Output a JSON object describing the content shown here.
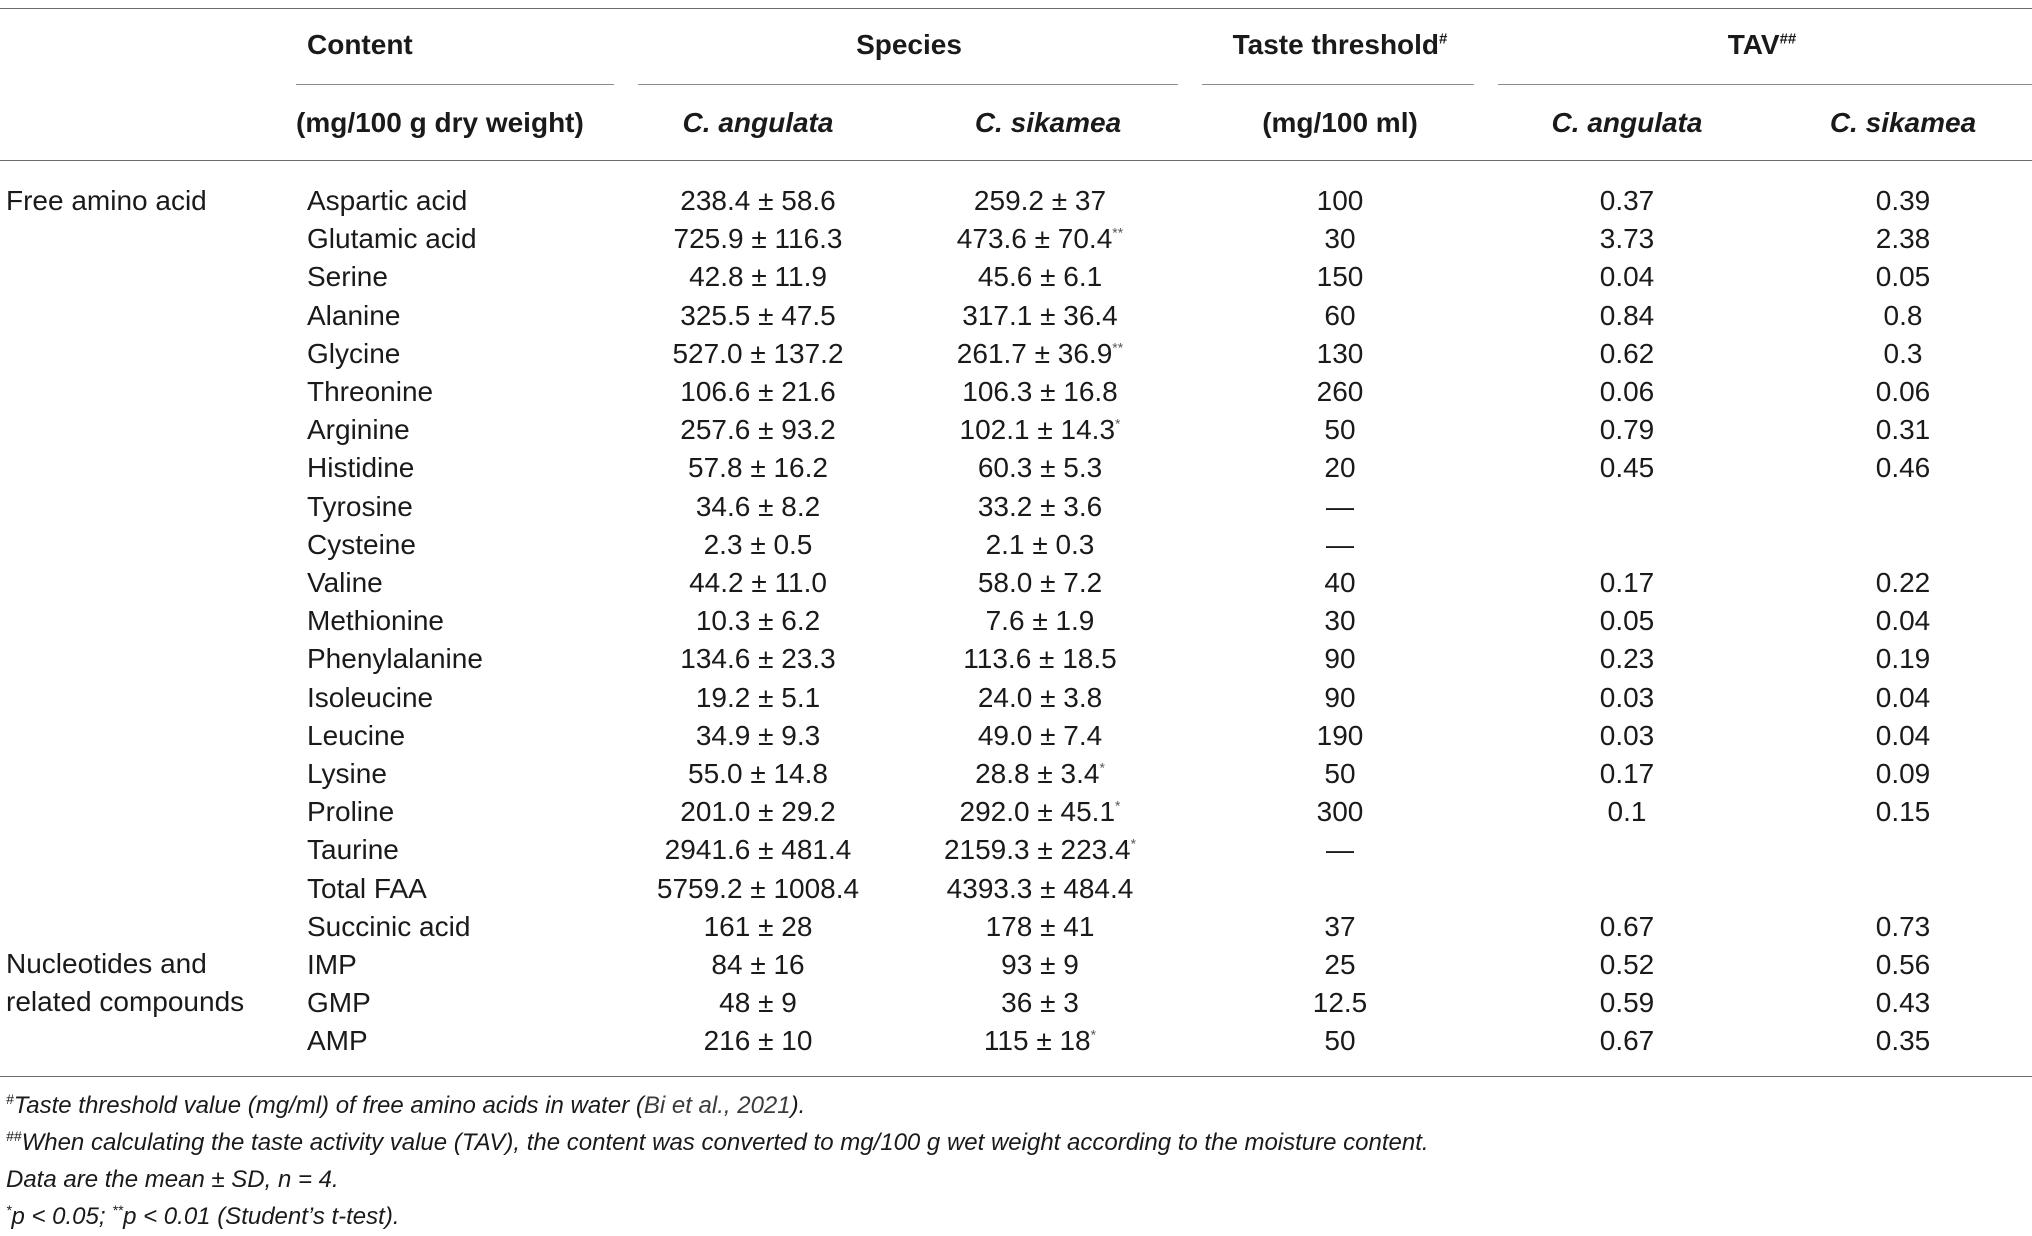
{
  "table": {
    "headers": {
      "content": "Content",
      "content_unit": "(mg/100 g dry weight)",
      "species": "Species",
      "species_a": "C. angulata",
      "species_b": "C. sikamea",
      "threshold": "Taste threshold",
      "threshold_mark": "#",
      "threshold_unit": "(mg/100 ml)",
      "tav": "TAV",
      "tav_mark": "##",
      "tav_a": "C. angulata",
      "tav_b": "C. sikamea"
    },
    "groups": [
      {
        "label": "Free amino acid"
      },
      {
        "label_line1": "Nucleotides and",
        "label_line2": "related compounds"
      }
    ],
    "rows": [
      {
        "name": "Aspartic acid",
        "a": "238.4 ± 58.6",
        "b": "259.2 ± 37",
        "b_sig": "",
        "threshold": "100",
        "tav_a": "0.37",
        "tav_b": "0.39"
      },
      {
        "name": "Glutamic acid",
        "a": "725.9 ± 116.3",
        "b": "473.6 ± 70.4",
        "b_sig": "**",
        "threshold": "30",
        "tav_a": "3.73",
        "tav_b": "2.38"
      },
      {
        "name": "Serine",
        "a": "42.8 ± 11.9",
        "b": "45.6 ± 6.1",
        "b_sig": "",
        "threshold": "150",
        "tav_a": "0.04",
        "tav_b": "0.05"
      },
      {
        "name": "Alanine",
        "a": "325.5 ± 47.5",
        "b": "317.1 ± 36.4",
        "b_sig": "",
        "threshold": "60",
        "tav_a": "0.84",
        "tav_b": "0.8"
      },
      {
        "name": "Glycine",
        "a": "527.0 ± 137.2",
        "b": "261.7 ± 36.9",
        "b_sig": "**",
        "threshold": "130",
        "tav_a": "0.62",
        "tav_b": "0.3"
      },
      {
        "name": "Threonine",
        "a": "106.6 ± 21.6",
        "b": "106.3 ± 16.8",
        "b_sig": "",
        "threshold": "260",
        "tav_a": "0.06",
        "tav_b": "0.06"
      },
      {
        "name": "Arginine",
        "a": "257.6 ± 93.2",
        "b": "102.1 ± 14.3",
        "b_sig": "*",
        "threshold": "50",
        "tav_a": "0.79",
        "tav_b": "0.31"
      },
      {
        "name": "Histidine",
        "a": "57.8 ± 16.2",
        "b": "60.3 ± 5.3",
        "b_sig": "",
        "threshold": "20",
        "tav_a": "0.45",
        "tav_b": "0.46"
      },
      {
        "name": "Tyrosine",
        "a": "34.6 ± 8.2",
        "b": "33.2 ± 3.6",
        "b_sig": "",
        "threshold": "—",
        "tav_a": "",
        "tav_b": ""
      },
      {
        "name": "Cysteine",
        "a": "2.3 ± 0.5",
        "b": "2.1 ± 0.3",
        "b_sig": "",
        "threshold": "—",
        "tav_a": "",
        "tav_b": ""
      },
      {
        "name": "Valine",
        "a": "44.2 ± 11.0",
        "b": "58.0 ± 7.2",
        "b_sig": "",
        "threshold": "40",
        "tav_a": "0.17",
        "tav_b": "0.22"
      },
      {
        "name": "Methionine",
        "a": "10.3 ± 6.2",
        "b": "7.6 ± 1.9",
        "b_sig": "",
        "threshold": "30",
        "tav_a": "0.05",
        "tav_b": "0.04"
      },
      {
        "name": "Phenylalanine",
        "a": "134.6 ± 23.3",
        "b": "113.6 ± 18.5",
        "b_sig": "",
        "threshold": "90",
        "tav_a": "0.23",
        "tav_b": "0.19"
      },
      {
        "name": "Isoleucine",
        "a": "19.2 ± 5.1",
        "b": "24.0 ± 3.8",
        "b_sig": "",
        "threshold": "90",
        "tav_a": "0.03",
        "tav_b": "0.04"
      },
      {
        "name": "Leucine",
        "a": "34.9 ± 9.3",
        "b": "49.0 ± 7.4",
        "b_sig": "",
        "threshold": "190",
        "tav_a": "0.03",
        "tav_b": "0.04"
      },
      {
        "name": "Lysine",
        "a": "55.0 ± 14.8",
        "b": "28.8 ± 3.4",
        "b_sig": "*",
        "threshold": "50",
        "tav_a": "0.17",
        "tav_b": "0.09"
      },
      {
        "name": "Proline",
        "a": "201.0 ± 29.2",
        "b": "292.0 ± 45.1",
        "b_sig": "*",
        "threshold": "300",
        "tav_a": "0.1",
        "tav_b": "0.15"
      },
      {
        "name": "Taurine",
        "a": "2941.6 ± 481.4",
        "b": "2159.3 ± 223.4",
        "b_sig": "*",
        "threshold": "—",
        "tav_a": "",
        "tav_b": ""
      },
      {
        "name": "Total FAA",
        "a": "5759.2 ± 1008.4",
        "b": "4393.3 ± 484.4",
        "b_sig": "",
        "threshold": "",
        "tav_a": "",
        "tav_b": ""
      },
      {
        "name": "Succinic acid",
        "a": "161 ± 28",
        "b": "178 ± 41",
        "b_sig": "",
        "threshold": "37",
        "tav_a": "0.67",
        "tav_b": "0.73"
      },
      {
        "name": "IMP",
        "a": "84 ± 16",
        "b": "93 ± 9",
        "b_sig": "",
        "threshold": "25",
        "tav_a": "0.52",
        "tav_b": "0.56"
      },
      {
        "name": "GMP",
        "a": "48 ± 9",
        "b": "36 ± 3",
        "b_sig": "",
        "threshold": "12.5",
        "tav_a": "0.59",
        "tav_b": "0.43"
      },
      {
        "name": "AMP",
        "a": "216 ± 10",
        "b": "115 ± 18",
        "b_sig": "*",
        "threshold": "50",
        "tav_a": "0.67",
        "tav_b": "0.35"
      }
    ]
  },
  "footnotes": {
    "f1_mark": "#",
    "f1_text": "Taste threshold value (mg/ml) of free amino acids in water (",
    "f1_ref": "Bi et al., 2021",
    "f1_end": ").",
    "f2_mark": "##",
    "f2_text": "When calculating the taste activity value (TAV), the content was converted to mg/100 g wet weight according to the moisture content.",
    "f3_text": "Data are the mean ± SD, n = 4.",
    "f4_mark1": "*",
    "f4_text1": "p < 0.05; ",
    "f4_mark2": "**",
    "f4_text2": "p < 0.01 (Student’s t-test)."
  }
}
